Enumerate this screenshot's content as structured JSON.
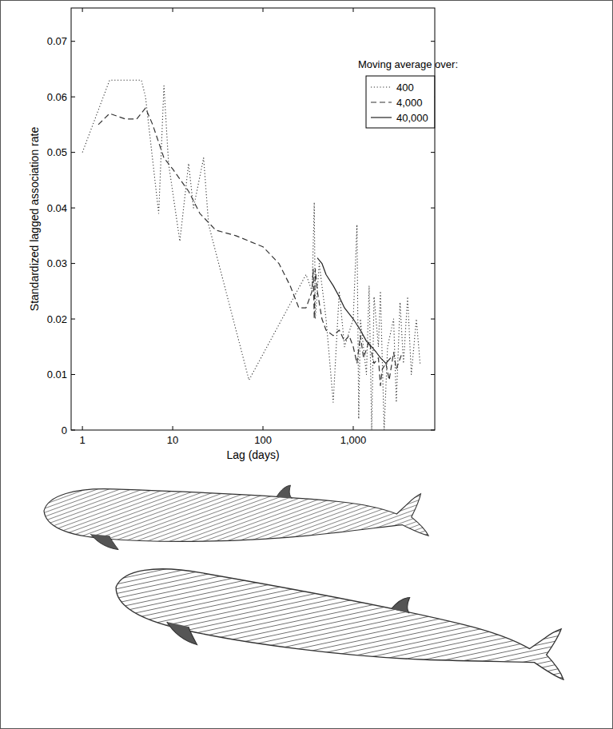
{
  "chart_data": {
    "type": "line",
    "x_label": "Lag (days)",
    "y_label": "Standardized lagged association rate",
    "legend_title": "Moving average over:",
    "log": "x",
    "grid": false,
    "legend": "upper right",
    "xlim": [
      0.75,
      8000
    ],
    "xticks": [
      1,
      10,
      100,
      {
        "value": 1000,
        "label": "1,000"
      }
    ],
    "ylim": [
      0,
      0.076
    ],
    "yticks": [
      0,
      0.01,
      0.02,
      0.03,
      0.04,
      0.05,
      0.06,
      0.07
    ],
    "series": [
      {
        "name": "400",
        "color": "#333333",
        "line_style": "dotted",
        "x": [
          1,
          2,
          3,
          4.5,
          5,
          7,
          8,
          9,
          12,
          15,
          17,
          22,
          25,
          70,
          300,
          350,
          370,
          380,
          420,
          500,
          600,
          700,
          800,
          1000,
          1100,
          1150,
          1200,
          1400,
          1500,
          1600,
          1700,
          1900,
          2000,
          2200,
          2400,
          2800,
          3000,
          3300,
          3600,
          4000,
          4400,
          5000,
          5500
        ],
        "values": [
          0.05,
          0.063,
          0.063,
          0.063,
          0.06,
          0.039,
          0.062,
          0.048,
          0.034,
          0.048,
          0.04,
          0.049,
          0.037,
          0.009,
          0.028,
          0.025,
          0.041,
          0.02,
          0.03,
          0.02,
          0.005,
          0.025,
          0.015,
          0.02,
          0.037,
          0.002,
          0.02,
          0.01,
          0.026,
          0.0,
          0.024,
          0.015,
          0.025,
          0.0,
          0.015,
          0.02,
          0.005,
          0.023,
          0.012,
          0.024,
          0.01,
          0.02,
          0.012
        ]
      },
      {
        "name": "4,000",
        "color": "#333333",
        "line_style": "dashed",
        "x": [
          1.5,
          2,
          3,
          4,
          5,
          6,
          8,
          10,
          15,
          20,
          30,
          50,
          100,
          150,
          200,
          250,
          300,
          350,
          360,
          370,
          380,
          400,
          450,
          500,
          600,
          700,
          800,
          900,
          1000,
          1100,
          1200,
          1300,
          1500,
          1700,
          1900,
          2000,
          2100,
          2300,
          2500,
          2800,
          3000,
          3500
        ],
        "values": [
          0.055,
          0.057,
          0.056,
          0.056,
          0.058,
          0.055,
          0.049,
          0.047,
          0.043,
          0.039,
          0.036,
          0.035,
          0.033,
          0.03,
          0.026,
          0.022,
          0.022,
          0.025,
          0.029,
          0.02,
          0.029,
          0.025,
          0.02,
          0.018,
          0.017,
          0.018,
          0.016,
          0.017,
          0.015,
          0.012,
          0.017,
          0.013,
          0.016,
          0.012,
          0.013,
          0.008,
          0.011,
          0.012,
          0.009,
          0.014,
          0.011,
          0.014
        ]
      },
      {
        "name": "40,000",
        "color": "#222222",
        "line_style": "solid",
        "x": [
          400,
          450,
          500,
          600,
          700,
          800,
          1000,
          1200,
          1400,
          1600,
          1800,
          2000,
          2300,
          2600
        ],
        "values": [
          0.031,
          0.03,
          0.028,
          0.026,
          0.024,
          0.022,
          0.02,
          0.018,
          0.016,
          0.015,
          0.014,
          0.013,
          0.012,
          0.013
        ]
      }
    ]
  }
}
